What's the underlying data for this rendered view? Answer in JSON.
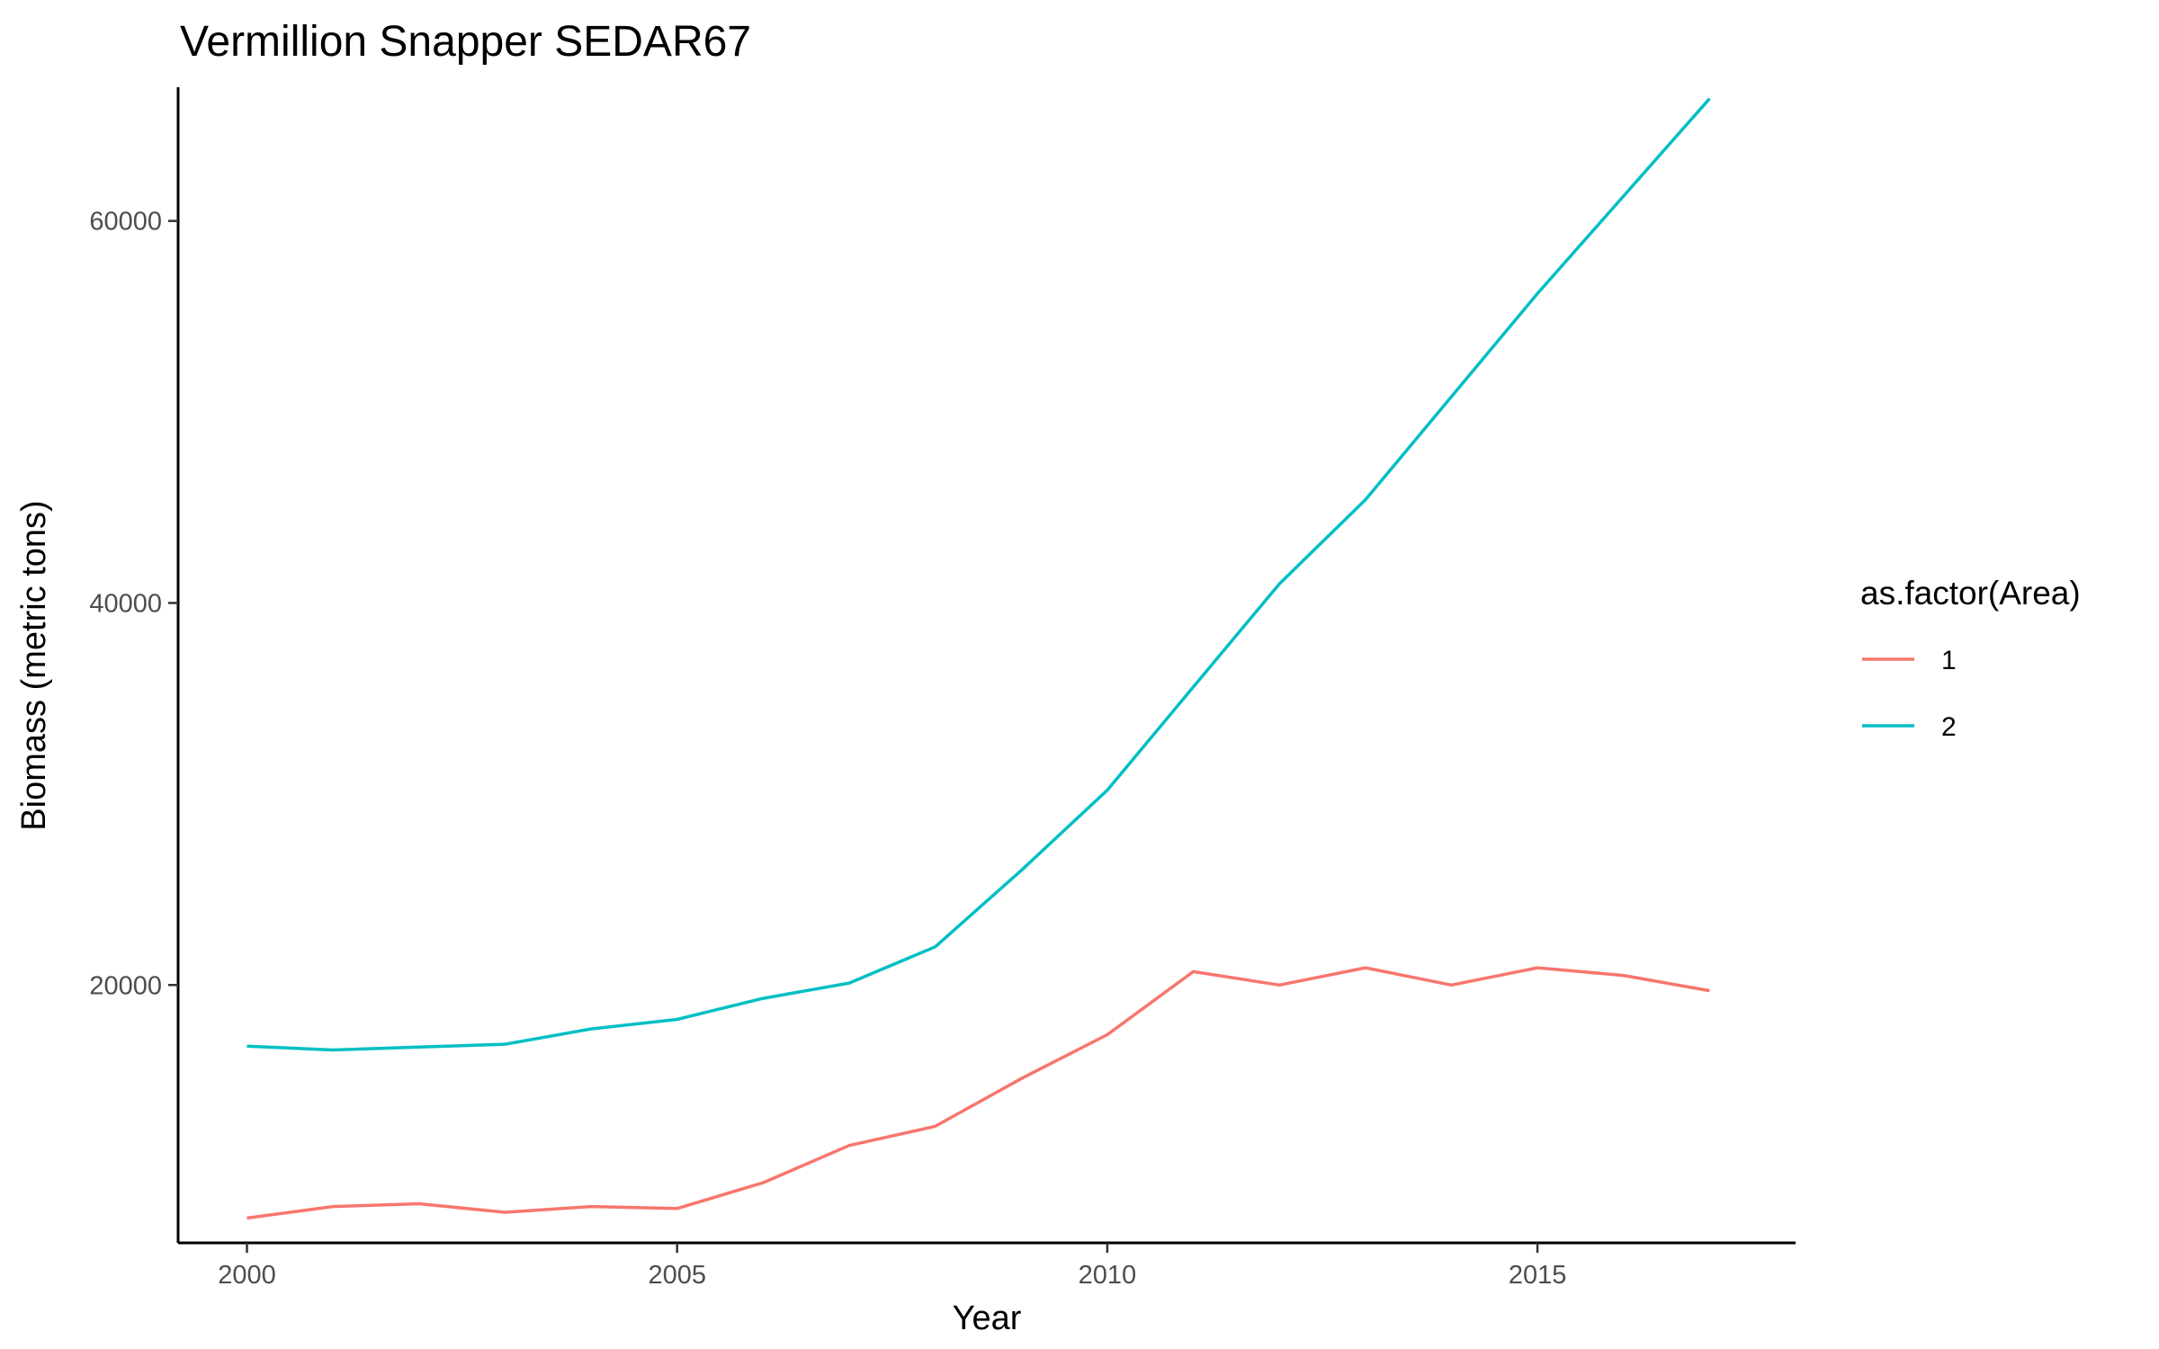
{
  "chart_data": {
    "type": "line",
    "title": "Vermillion Snapper SEDAR67",
    "xlabel": "Year",
    "ylabel": "Biomass (metric tons)",
    "xlim": [
      1999.2,
      2018.0
    ],
    "ylim": [
      6500,
      67000
    ],
    "x_ticks": [
      2000,
      2005,
      2010,
      2015
    ],
    "y_ticks": [
      20000,
      40000,
      60000
    ],
    "grid": false,
    "legend": {
      "title": "as.factor(Area)",
      "placement": "right"
    },
    "x": [
      2000,
      2001,
      2002,
      2003,
      2004,
      2005,
      2006,
      2007,
      2008,
      2009,
      2010,
      2011,
      2012,
      2013,
      2014,
      2015,
      2016,
      2017
    ],
    "series": [
      {
        "name": "1",
        "color": "#F8766D",
        "values": [
          7800,
          8400,
          8550,
          8100,
          8400,
          8300,
          9650,
          11600,
          12600,
          15100,
          17400,
          20700,
          20000,
          20900,
          20000,
          20900,
          20500,
          19700
        ]
      },
      {
        "name": "2",
        "color": "#00BFC4",
        "values": [
          16800,
          16600,
          16750,
          16900,
          17700,
          18200,
          19300,
          20100,
          22000,
          26000,
          30200,
          35600,
          41000,
          45400,
          50800,
          56200,
          61300,
          66400
        ]
      }
    ]
  }
}
